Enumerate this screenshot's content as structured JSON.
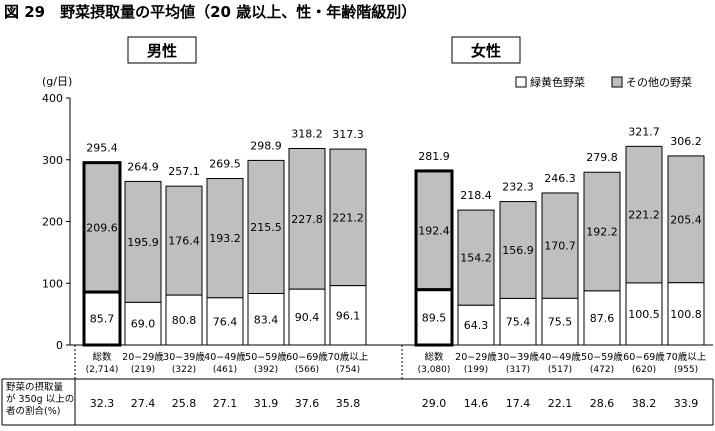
{
  "colors": {
    "green_yellow": "#ffffff",
    "other": "#bfbfbf",
    "outline": "#000000"
  },
  "chart_data": {
    "type": "bar",
    "title": "図 29　野菜摂取量の平均値（20 歳以上、性・年齢階級別）",
    "ylabel": "(g/日)",
    "ylim": [
      0,
      400
    ],
    "yticks": [
      "0",
      "100",
      "200",
      "300",
      "400"
    ],
    "stacked": true,
    "legend": {
      "position": "top-right",
      "entries": [
        "緑黄色野菜",
        "その他の野菜"
      ]
    },
    "rate_label": "野菜の摂取量が 350g 以上の者の割合(%)",
    "rate_label_lines": [
      "野菜の摂取量",
      "が 350g 以上の",
      "者の割合(%)"
    ],
    "groups": [
      {
        "name": "男性",
        "categories": [
          "総数",
          "20−29歳",
          "30−39歳",
          "40−49歳",
          "50−59歳",
          "60−69歳",
          "70歳以上"
        ],
        "n": [
          "(2,714)",
          "(219)",
          "(322)",
          "(461)",
          "(392)",
          "(566)",
          "(754)"
        ],
        "series": [
          {
            "name": "緑黄色野菜",
            "values": [
              85.7,
              69.0,
              80.8,
              76.4,
              83.4,
              90.4,
              96.1
            ]
          },
          {
            "name": "その他の野菜",
            "values": [
              209.6,
              195.9,
              176.4,
              193.2,
              215.5,
              227.8,
              221.2
            ]
          }
        ],
        "totals": [
          295.4,
          264.9,
          257.1,
          269.5,
          298.9,
          318.2,
          317.3
        ],
        "rate": [
          32.3,
          27.4,
          25.8,
          27.1,
          31.9,
          37.6,
          35.8
        ]
      },
      {
        "name": "女性",
        "categories": [
          "総数",
          "20−29歳",
          "30−39歳",
          "40−49歳",
          "50−59歳",
          "60−69歳",
          "70歳以上"
        ],
        "n": [
          "(3,080)",
          "(199)",
          "(317)",
          "(517)",
          "(472)",
          "(620)",
          "(955)"
        ],
        "series": [
          {
            "name": "緑黄色野菜",
            "values": [
              89.5,
              64.3,
              75.4,
              75.5,
              87.6,
              100.5,
              100.8
            ]
          },
          {
            "name": "その他の野菜",
            "values": [
              192.4,
              154.2,
              156.9,
              170.7,
              192.2,
              221.2,
              205.4
            ]
          }
        ],
        "totals": [
          281.9,
          218.4,
          232.3,
          246.3,
          279.8,
          321.7,
          306.2
        ],
        "rate": [
          29.0,
          14.6,
          17.4,
          22.1,
          28.6,
          38.2,
          33.9
        ]
      }
    ]
  }
}
